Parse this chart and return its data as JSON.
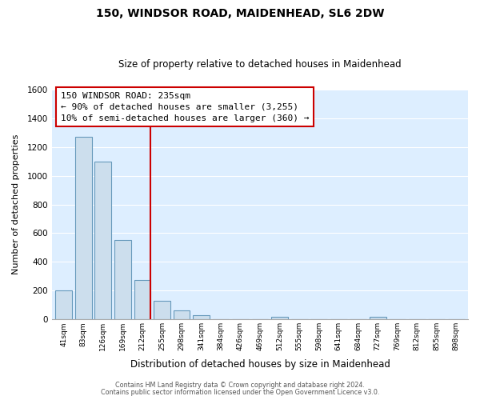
{
  "title": "150, WINDSOR ROAD, MAIDENHEAD, SL6 2DW",
  "subtitle": "Size of property relative to detached houses in Maidenhead",
  "xlabel": "Distribution of detached houses by size in Maidenhead",
  "ylabel": "Number of detached properties",
  "bar_labels": [
    "41sqm",
    "83sqm",
    "126sqm",
    "169sqm",
    "212sqm",
    "255sqm",
    "298sqm",
    "341sqm",
    "384sqm",
    "426sqm",
    "469sqm",
    "512sqm",
    "555sqm",
    "598sqm",
    "641sqm",
    "684sqm",
    "727sqm",
    "769sqm",
    "812sqm",
    "855sqm",
    "898sqm"
  ],
  "bar_values": [
    200,
    1270,
    1100,
    555,
    275,
    130,
    62,
    30,
    0,
    0,
    0,
    18,
    0,
    0,
    0,
    0,
    20,
    0,
    0,
    0,
    0
  ],
  "bar_color": "#ccdeed",
  "bar_edge_color": "#6699bb",
  "vline_color": "#cc0000",
  "ylim": [
    0,
    1600
  ],
  "yticks": [
    0,
    200,
    400,
    600,
    800,
    1000,
    1200,
    1400,
    1600
  ],
  "annotation_title": "150 WINDSOR ROAD: 235sqm",
  "annotation_line1": "← 90% of detached houses are smaller (3,255)",
  "annotation_line2": "10% of semi-detached houses are larger (360) →",
  "footer_line1": "Contains HM Land Registry data © Crown copyright and database right 2024.",
  "footer_line2": "Contains public sector information licensed under the Open Government Licence v3.0.",
  "plot_bg": "#ddeeff",
  "fig_bg": "#ffffff"
}
